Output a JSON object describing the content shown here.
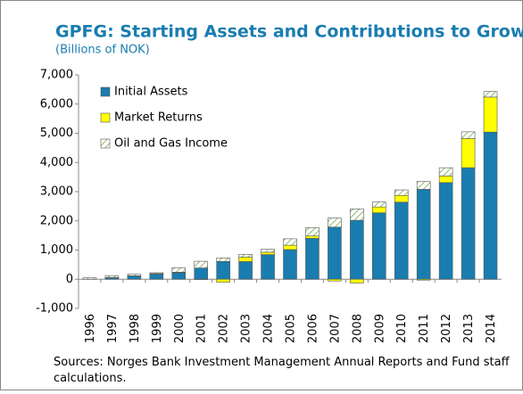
{
  "chart_data": {
    "type": "stacked_bar",
    "title": "GPFG: Starting Assets and Contributions to Growth",
    "subtitle": "(Billions of NOK)",
    "source": "Sources: Norges Bank Investment Management Annual Reports and Fund staff calculations.",
    "categories": [
      "1996",
      "1997",
      "1998",
      "1999",
      "2000",
      "2001",
      "2002",
      "2003",
      "2004",
      "2005",
      "2006",
      "2007",
      "2008",
      "2009",
      "2010",
      "2011",
      "2012",
      "2013",
      "2014"
    ],
    "series": [
      {
        "name": "Initial Assets",
        "color": "#1a7db0",
        "values": [
          2,
          48,
          113,
          172,
          222,
          386,
          609,
          605,
          845,
          1015,
          1400,
          1785,
          2020,
          2275,
          2640,
          3080,
          3310,
          3820,
          5040
        ]
      },
      {
        "name": "Market Returns",
        "color": "#ffff00",
        "values": [
          0,
          10,
          5,
          20,
          20,
          -10,
          -100,
          150,
          80,
          150,
          80,
          -60,
          -130,
          200,
          230,
          -30,
          230,
          1000,
          1200
        ]
      },
      {
        "name": "Oil and Gas Income",
        "color": "#8fb86a",
        "pattern": "hatch",
        "values": [
          48,
          60,
          50,
          30,
          150,
          230,
          120,
          100,
          100,
          220,
          290,
          310,
          390,
          170,
          190,
          270,
          280,
          230,
          190
        ]
      }
    ],
    "ylim": [
      -1000,
      7000
    ],
    "yticks": [
      {
        "value": -1000,
        "label": "-1,000"
      },
      0,
      {
        "value": 1000,
        "label": "1,000"
      },
      {
        "value": 2000,
        "label": "2,000"
      },
      {
        "value": 3000,
        "label": "3,000"
      },
      {
        "value": 4000,
        "label": "4,000"
      },
      {
        "value": 5000,
        "label": "5,000"
      },
      {
        "value": 6000,
        "label": "6,000"
      },
      {
        "value": 7000,
        "label": "7,000"
      }
    ],
    "legend": "upper-left"
  }
}
